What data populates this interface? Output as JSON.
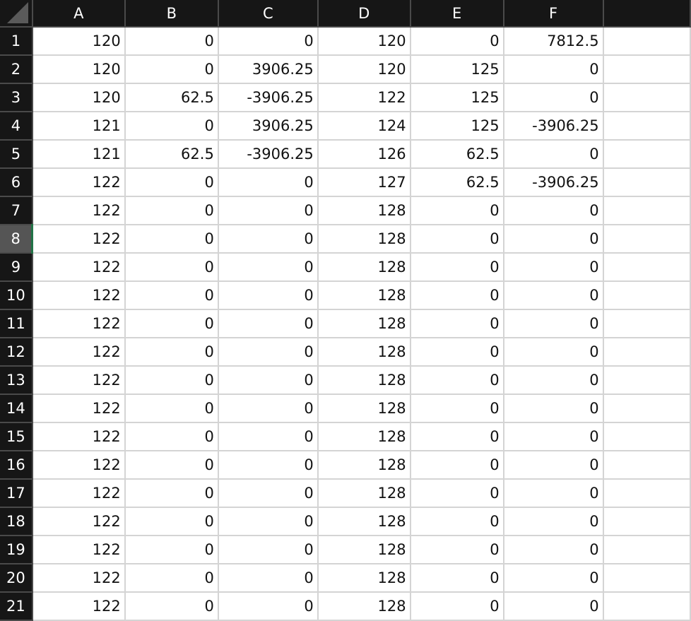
{
  "colors": {
    "header_bg": "#161616",
    "selected_row_header": "#555555",
    "selection_accent": "#217346",
    "gridline": "#d4d4d4"
  },
  "columns": [
    "A",
    "B",
    "C",
    "D",
    "E",
    "F",
    ""
  ],
  "selected_row": 8,
  "rows": [
    {
      "n": "1",
      "cells": [
        "120",
        "0",
        "0",
        "120",
        "0",
        "7812.5",
        ""
      ]
    },
    {
      "n": "2",
      "cells": [
        "120",
        "0",
        "3906.25",
        "120",
        "125",
        "0",
        ""
      ]
    },
    {
      "n": "3",
      "cells": [
        "120",
        "62.5",
        "-3906.25",
        "122",
        "125",
        "0",
        ""
      ]
    },
    {
      "n": "4",
      "cells": [
        "121",
        "0",
        "3906.25",
        "124",
        "125",
        "-3906.25",
        ""
      ]
    },
    {
      "n": "5",
      "cells": [
        "121",
        "62.5",
        "-3906.25",
        "126",
        "62.5",
        "0",
        ""
      ]
    },
    {
      "n": "6",
      "cells": [
        "122",
        "0",
        "0",
        "127",
        "62.5",
        "-3906.25",
        ""
      ]
    },
    {
      "n": "7",
      "cells": [
        "122",
        "0",
        "0",
        "128",
        "0",
        "0",
        ""
      ]
    },
    {
      "n": "8",
      "cells": [
        "122",
        "0",
        "0",
        "128",
        "0",
        "0",
        ""
      ]
    },
    {
      "n": "9",
      "cells": [
        "122",
        "0",
        "0",
        "128",
        "0",
        "0",
        ""
      ]
    },
    {
      "n": "10",
      "cells": [
        "122",
        "0",
        "0",
        "128",
        "0",
        "0",
        ""
      ]
    },
    {
      "n": "11",
      "cells": [
        "122",
        "0",
        "0",
        "128",
        "0",
        "0",
        ""
      ]
    },
    {
      "n": "12",
      "cells": [
        "122",
        "0",
        "0",
        "128",
        "0",
        "0",
        ""
      ]
    },
    {
      "n": "13",
      "cells": [
        "122",
        "0",
        "0",
        "128",
        "0",
        "0",
        ""
      ]
    },
    {
      "n": "14",
      "cells": [
        "122",
        "0",
        "0",
        "128",
        "0",
        "0",
        ""
      ]
    },
    {
      "n": "15",
      "cells": [
        "122",
        "0",
        "0",
        "128",
        "0",
        "0",
        ""
      ]
    },
    {
      "n": "16",
      "cells": [
        "122",
        "0",
        "0",
        "128",
        "0",
        "0",
        ""
      ]
    },
    {
      "n": "17",
      "cells": [
        "122",
        "0",
        "0",
        "128",
        "0",
        "0",
        ""
      ]
    },
    {
      "n": "18",
      "cells": [
        "122",
        "0",
        "0",
        "128",
        "0",
        "0",
        ""
      ]
    },
    {
      "n": "19",
      "cells": [
        "122",
        "0",
        "0",
        "128",
        "0",
        "0",
        ""
      ]
    },
    {
      "n": "20",
      "cells": [
        "122",
        "0",
        "0",
        "128",
        "0",
        "0",
        ""
      ]
    },
    {
      "n": "21",
      "cells": [
        "122",
        "0",
        "0",
        "128",
        "0",
        "0",
        ""
      ]
    }
  ]
}
